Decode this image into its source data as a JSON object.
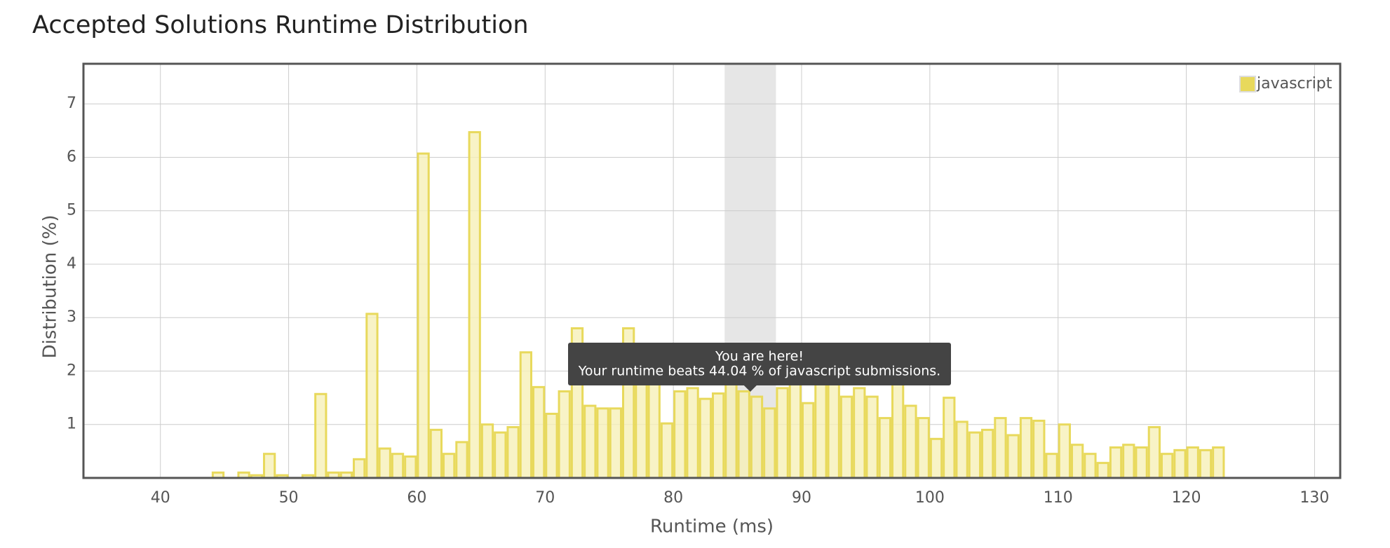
{
  "chart_data": {
    "type": "histogram",
    "title": "Accepted Solutions Runtime Distribution",
    "x_label": "Runtime (ms)",
    "y_label": "Distribution (%)",
    "annotation": [
      "You are here!",
      "Your runtime beats 44.04 % of javascript submissions."
    ],
    "bins": [
      44,
      45,
      46,
      47,
      48,
      49,
      50,
      51,
      52,
      53,
      54,
      55,
      56,
      57,
      58,
      59,
      60,
      61,
      62,
      63,
      64,
      65,
      66,
      67,
      68,
      69,
      70,
      71,
      72,
      73,
      74,
      75,
      76,
      77,
      78,
      79,
      80,
      81,
      82,
      83,
      84,
      85,
      86,
      87,
      88,
      89,
      90,
      91,
      92,
      93,
      94,
      95,
      96,
      97,
      98,
      99,
      100,
      101,
      102,
      103,
      104,
      105,
      106,
      107,
      108,
      109,
      110,
      111,
      112,
      113,
      114,
      115,
      116,
      117,
      118,
      119,
      120,
      121,
      122,
      123
    ],
    "series": [
      {
        "name": "javascript",
        "color": "#e8d95c",
        "fill": "#f6f0b8",
        "values": [
          0.1,
          0,
          0.1,
          0.05,
          0.45,
          0.05,
          0,
          0.05,
          1.57,
          0.1,
          0.1,
          0.35,
          3.07,
          0.55,
          0.45,
          0.4,
          6.07,
          0.9,
          0.45,
          0.67,
          6.47,
          1.0,
          0.85,
          0.95,
          2.35,
          1.7,
          1.2,
          1.62,
          2.8,
          1.35,
          1.3,
          1.3,
          2.8,
          2.1,
          1.9,
          1.02,
          1.62,
          1.68,
          1.48,
          1.58,
          2.0,
          1.62,
          1.52,
          1.3,
          1.68,
          1.9,
          1.4,
          2.0,
          1.9,
          1.52,
          1.68,
          1.52,
          1.12,
          2.0,
          1.35,
          1.12,
          0.73,
          1.5,
          1.05,
          0.85,
          0.9,
          1.12,
          0.8,
          1.12,
          1.07,
          0.45,
          1.0,
          0.62,
          0.45,
          0.28,
          0.57,
          0.62,
          0.57,
          0.95,
          0.45,
          0.52,
          0.57,
          0.52,
          0.57
        ]
      }
    ],
    "highlight_range": [
      84,
      88
    ],
    "xlim": [
      34,
      132
    ],
    "ylim": [
      0,
      7.75
    ],
    "xticks": [
      40,
      50,
      60,
      70,
      80,
      90,
      100,
      110,
      120,
      130
    ],
    "yticks": [
      1,
      2,
      3,
      4,
      5,
      6,
      7
    ],
    "grid": true,
    "legend": "top-right"
  }
}
